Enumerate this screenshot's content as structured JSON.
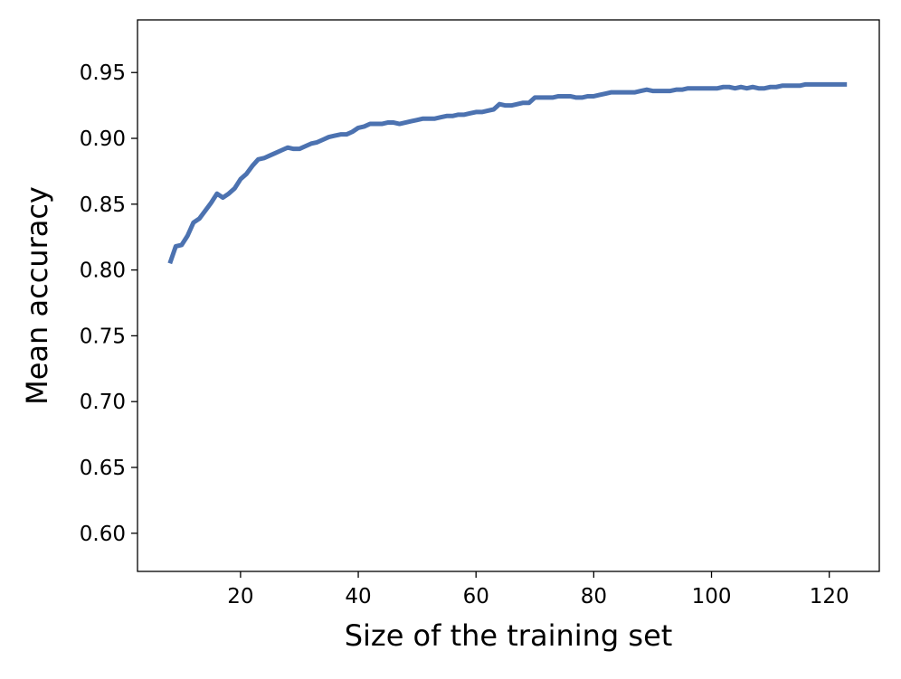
{
  "chart_data": {
    "type": "line",
    "title": "",
    "xlabel": "Size of the training set",
    "ylabel": "Mean accuracy",
    "xlim": [
      2.5,
      128.5
    ],
    "ylim": [
      0.571,
      0.99
    ],
    "xticks": [
      20,
      40,
      60,
      80,
      100,
      120
    ],
    "yticks": [
      0.6,
      0.65,
      0.7,
      0.75,
      0.8,
      0.85,
      0.9,
      0.95
    ],
    "xtick_labels": [
      "20",
      "40",
      "60",
      "80",
      "100",
      "120"
    ],
    "ytick_labels": [
      "0.60",
      "0.65",
      "0.70",
      "0.75",
      "0.80",
      "0.85",
      "0.90",
      "0.95"
    ],
    "grid": false,
    "legend": false,
    "series": [
      {
        "color": "#4c72b0",
        "x": [
          8,
          9,
          10,
          11,
          12,
          13,
          14,
          15,
          16,
          17,
          18,
          19,
          20,
          21,
          22,
          23,
          24,
          25,
          26,
          27,
          28,
          29,
          30,
          31,
          32,
          33,
          34,
          35,
          36,
          37,
          38,
          39,
          40,
          41,
          42,
          43,
          44,
          45,
          46,
          47,
          48,
          49,
          50,
          51,
          52,
          53,
          54,
          55,
          56,
          57,
          58,
          59,
          60,
          61,
          62,
          63,
          64,
          65,
          66,
          67,
          68,
          69,
          70,
          71,
          72,
          73,
          74,
          75,
          76,
          77,
          78,
          79,
          80,
          81,
          82,
          83,
          84,
          85,
          86,
          87,
          88,
          89,
          90,
          91,
          92,
          93,
          94,
          95,
          96,
          97,
          98,
          99,
          100,
          101,
          102,
          103,
          104,
          105,
          106,
          107,
          108,
          109,
          110,
          111,
          112,
          113,
          114,
          115,
          116,
          117,
          118,
          119,
          120,
          121,
          122,
          123
        ],
        "y": [
          0.805,
          0.818,
          0.819,
          0.826,
          0.836,
          0.839,
          0.845,
          0.851,
          0.858,
          0.855,
          0.858,
          0.862,
          0.869,
          0.873,
          0.879,
          0.884,
          0.885,
          0.887,
          0.889,
          0.891,
          0.893,
          0.892,
          0.892,
          0.894,
          0.896,
          0.897,
          0.899,
          0.901,
          0.902,
          0.903,
          0.903,
          0.905,
          0.908,
          0.909,
          0.911,
          0.911,
          0.911,
          0.912,
          0.912,
          0.911,
          0.912,
          0.913,
          0.914,
          0.915,
          0.915,
          0.915,
          0.916,
          0.917,
          0.917,
          0.918,
          0.918,
          0.919,
          0.92,
          0.92,
          0.921,
          0.922,
          0.926,
          0.925,
          0.925,
          0.926,
          0.927,
          0.927,
          0.931,
          0.931,
          0.931,
          0.931,
          0.932,
          0.932,
          0.932,
          0.931,
          0.931,
          0.932,
          0.932,
          0.933,
          0.934,
          0.935,
          0.935,
          0.935,
          0.935,
          0.935,
          0.936,
          0.937,
          0.936,
          0.936,
          0.936,
          0.936,
          0.937,
          0.937,
          0.938,
          0.938,
          0.938,
          0.938,
          0.938,
          0.938,
          0.939,
          0.939,
          0.938,
          0.939,
          0.938,
          0.939,
          0.938,
          0.938,
          0.939,
          0.939,
          0.94,
          0.94,
          0.94,
          0.94,
          0.941,
          0.941,
          0.941,
          0.941,
          0.941,
          0.941,
          0.941,
          0.941
        ]
      }
    ]
  }
}
